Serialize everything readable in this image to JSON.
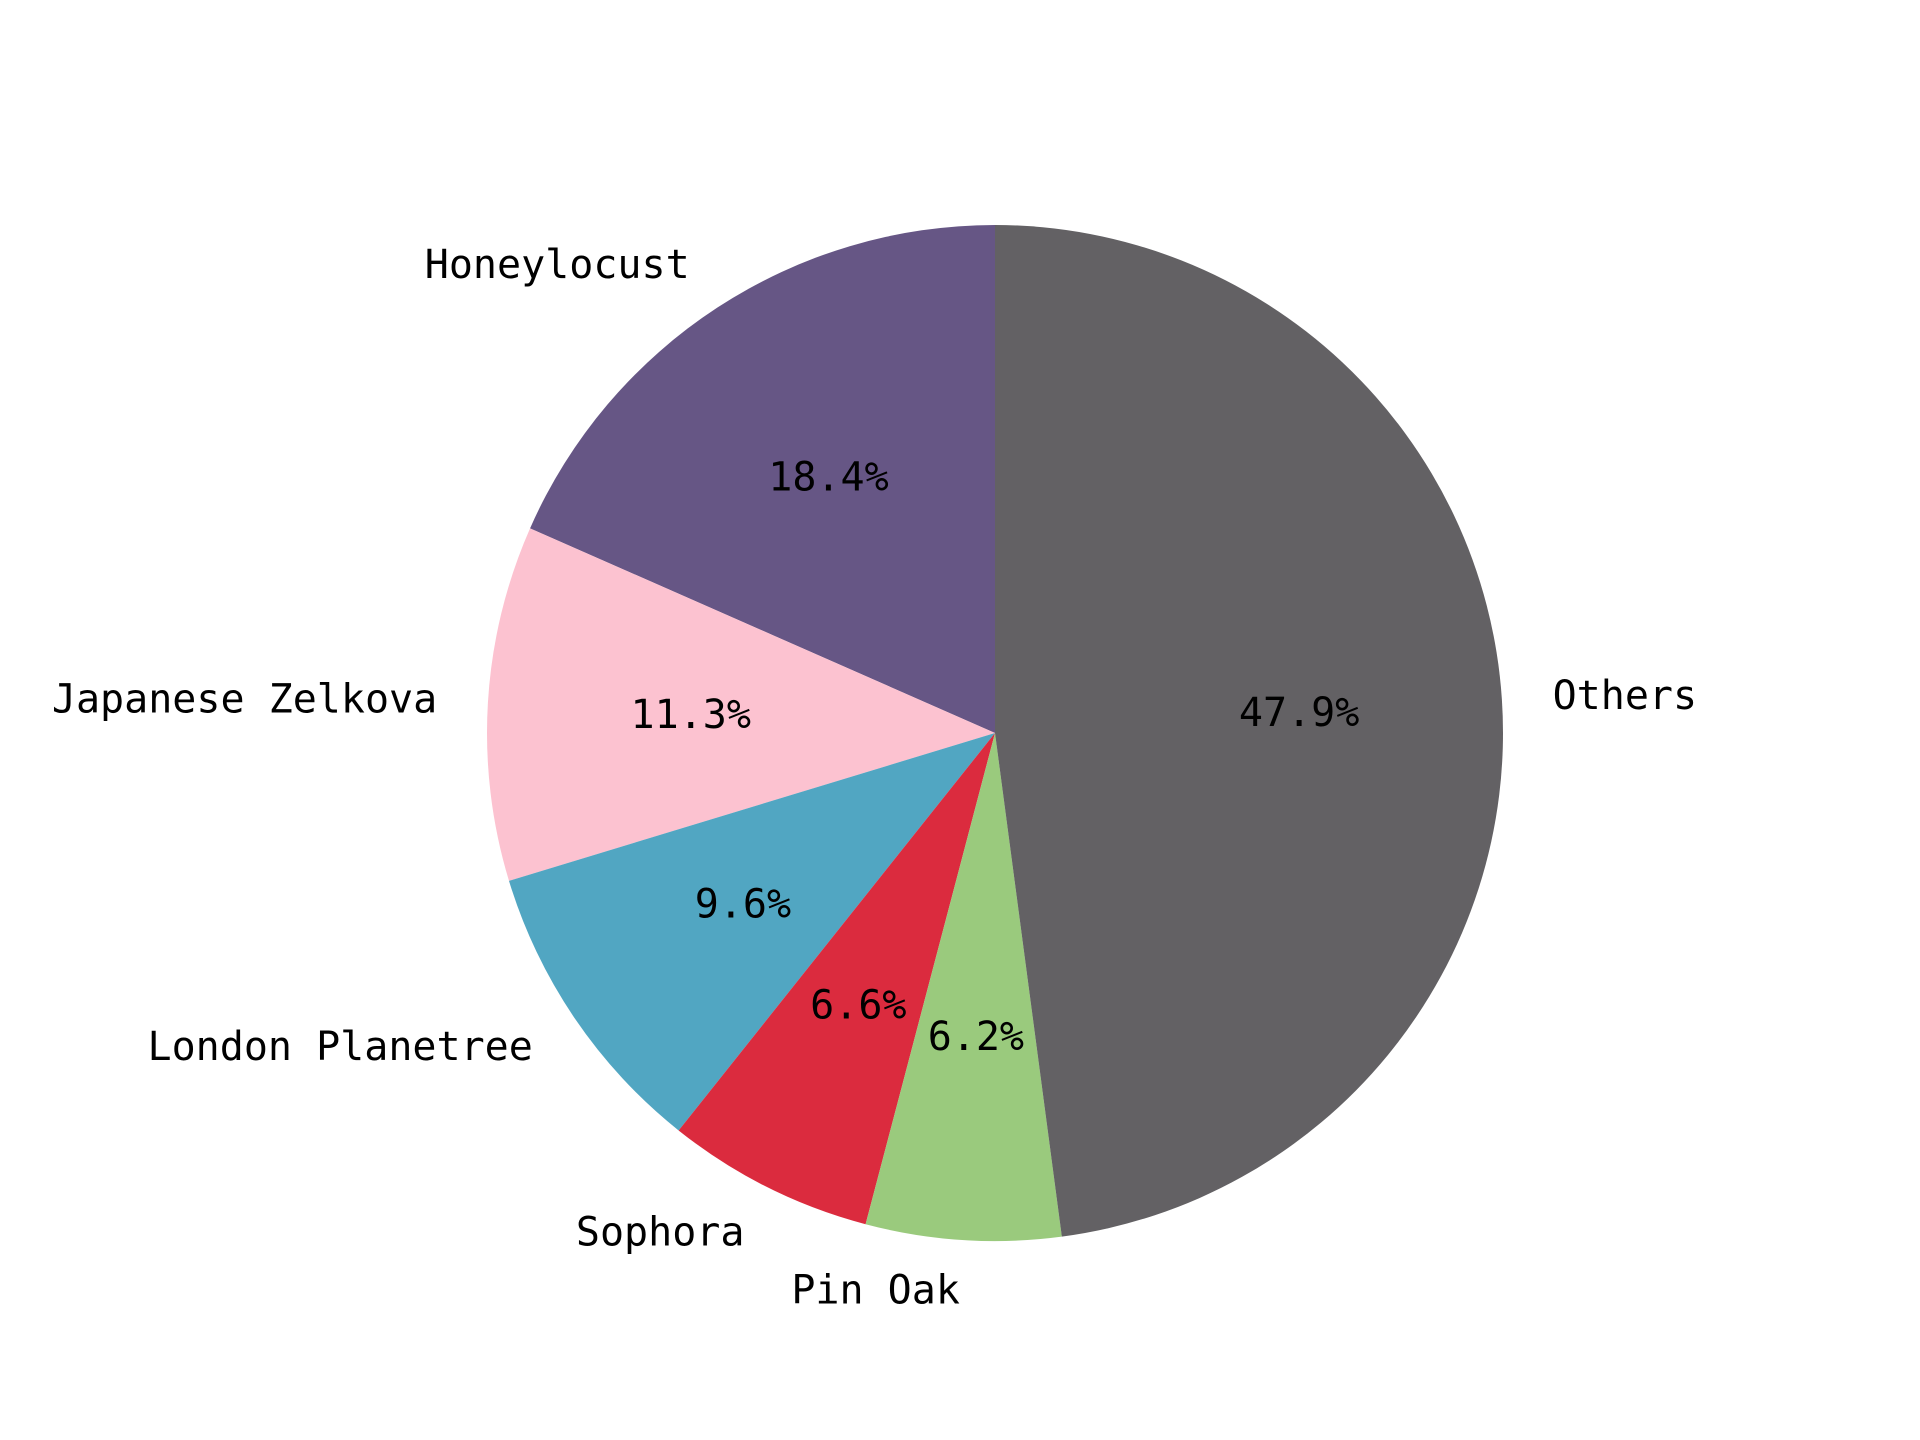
{
  "chart_data": {
    "type": "pie",
    "title": "",
    "start_angle_deg": 90,
    "direction": "counterclockwise",
    "slices": [
      {
        "label": "Honeylocust",
        "value": 18.4,
        "pct_label": "18.4%",
        "color": "#665685"
      },
      {
        "label": "Japanese Zelkova",
        "value": 11.3,
        "pct_label": "11.3%",
        "color": "#fcc2d0"
      },
      {
        "label": "London Planetree",
        "value": 9.6,
        "pct_label": "9.6%",
        "color": "#51a6c2"
      },
      {
        "label": "Sophora",
        "value": 6.6,
        "pct_label": "6.6%",
        "color": "#db2b3e"
      },
      {
        "label": "Pin Oak",
        "value": 6.2,
        "pct_label": "6.2%",
        "color": "#9aca7d"
      },
      {
        "label": "Others",
        "value": 47.9,
        "pct_label": "47.9%",
        "color": "#636164"
      }
    ],
    "legend": "none",
    "grid": false
  }
}
